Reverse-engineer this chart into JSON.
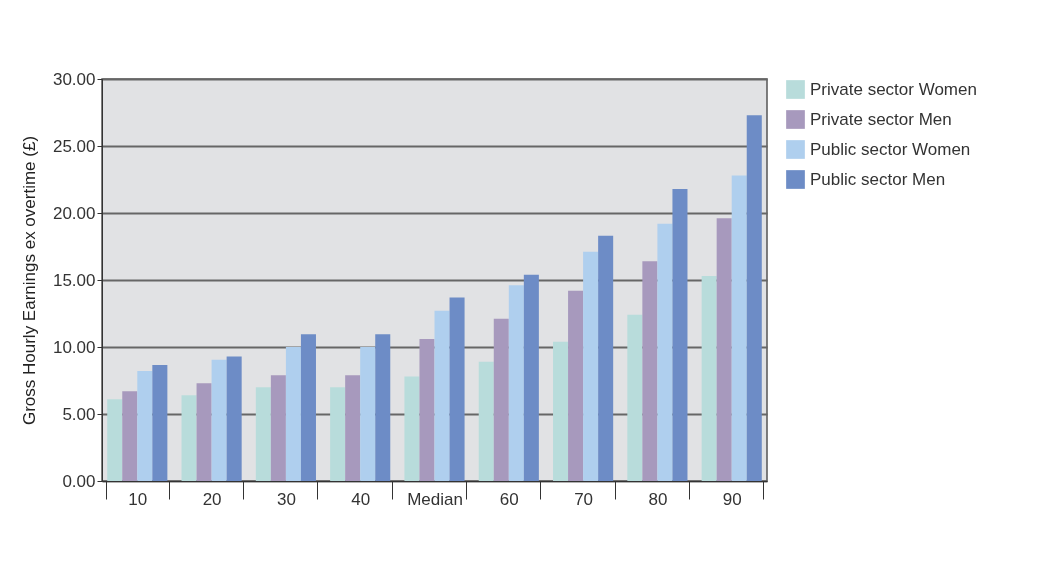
{
  "chart_data": {
    "type": "bar",
    "ylabel": "Gross Hourly Earnings ex overtime (£)",
    "categories": [
      "10",
      "20",
      "30",
      "40",
      "Median",
      "60",
      "70",
      "80",
      "90"
    ],
    "series": [
      {
        "name": "Private sector Women",
        "color": "#b8dcdb",
        "values": [
          6.1,
          6.4,
          7.0,
          7.0,
          7.8,
          8.9,
          10.4,
          12.4,
          15.3
        ]
      },
      {
        "name": "Private sector Men",
        "color": "#a799bd",
        "values": [
          6.7,
          7.3,
          7.9,
          7.9,
          10.6,
          12.1,
          14.2,
          16.4,
          19.6
        ]
      },
      {
        "name": "Public sector Women",
        "color": "#afcfee",
        "values": [
          8.2,
          9.05,
          10.0,
          10.0,
          12.7,
          14.6,
          17.1,
          19.2,
          22.8
        ]
      },
      {
        "name": "Public sector Men",
        "color": "#6d8cc6",
        "values": [
          8.65,
          9.3,
          10.95,
          10.95,
          13.7,
          15.4,
          18.3,
          21.8,
          27.3
        ]
      }
    ],
    "ylim": [
      0,
      30
    ],
    "yticks": [
      {
        "value": 0,
        "label": "0.00"
      },
      {
        "value": 5,
        "label": "5.00"
      },
      {
        "value": 10,
        "label": "10.00"
      },
      {
        "value": 15,
        "label": "15.00"
      },
      {
        "value": 20,
        "label": "20.00"
      },
      {
        "value": 25,
        "label": "25.00"
      },
      {
        "value": 30,
        "label": "30.00"
      }
    ],
    "grid": "y",
    "legend": "right"
  }
}
